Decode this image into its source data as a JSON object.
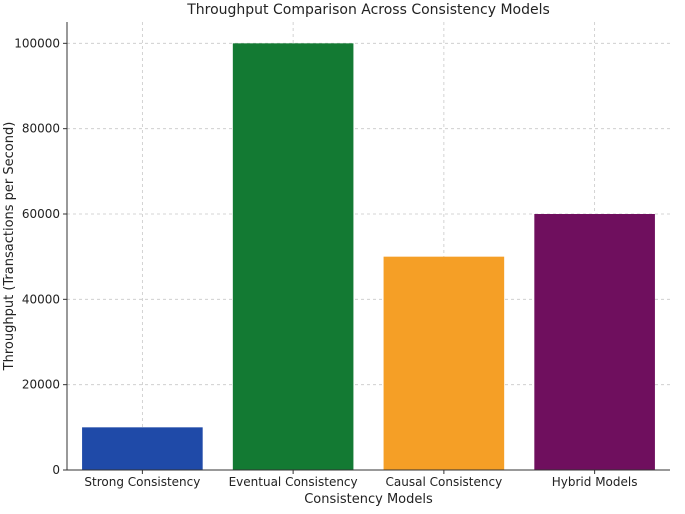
{
  "chart_data": {
    "type": "bar",
    "title": "Throughput Comparison Across Consistency Models",
    "xlabel": "Consistency Models",
    "ylabel": "Throughput (Transactions per Second)",
    "categories": [
      "Strong Consistency",
      "Eventual Consistency",
      "Causal Consistency",
      "Hybrid Models"
    ],
    "values": [
      10000,
      100000,
      50000,
      60000
    ],
    "colors": [
      "#1f4aa8",
      "#137a33",
      "#f59f26",
      "#6f0f5e"
    ],
    "ylim": [
      0,
      105000
    ],
    "yticks": [
      0,
      20000,
      40000,
      60000,
      80000,
      100000
    ],
    "grid": true,
    "legend": "none"
  }
}
